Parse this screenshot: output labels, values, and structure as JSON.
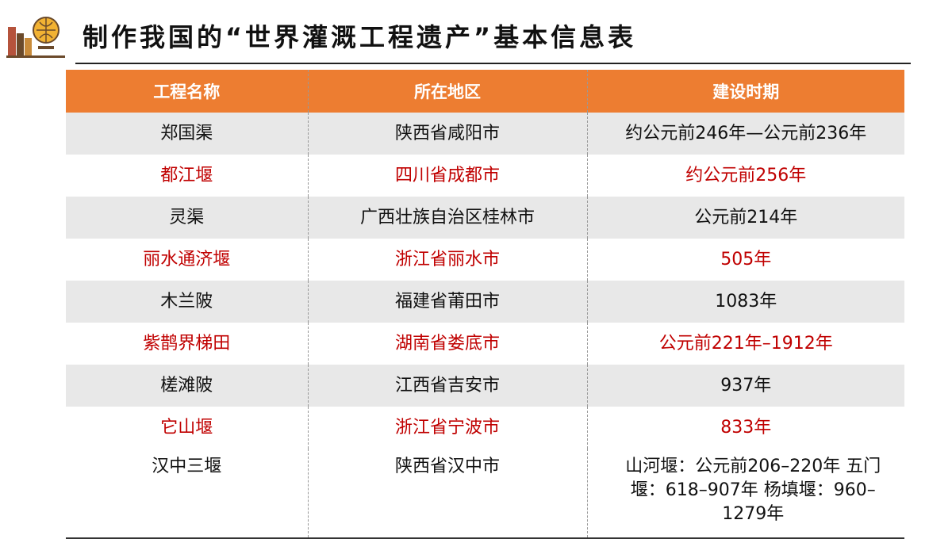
{
  "header": {
    "title": "制作我国的“世界灌溉工程遗产”基本信息表"
  },
  "table": {
    "columns": [
      "工程名称",
      "所在地区",
      "建设时期"
    ],
    "rows": [
      [
        "郑国渠",
        "陕西省咸阳市",
        "约公元前246年—公元前236年"
      ],
      [
        "都江堰",
        "四川省成都市",
        "约公元前256年"
      ],
      [
        "灵渠",
        "广西壮族自治区桂林市",
        "公元前214年"
      ],
      [
        "丽水通济堰",
        "浙江省丽水市",
        "505年"
      ],
      [
        "木兰陂",
        "福建省莆田市",
        "1083年"
      ],
      [
        "紫鹊界梯田",
        "湖南省娄底市",
        "公元前221年–1912年"
      ],
      [
        "槎滩陂",
        "江西省吉安市",
        "937年"
      ],
      [
        "它山堰",
        "浙江省宁波市",
        "833年"
      ],
      [
        "汉中三堰",
        "陕西省汉中市",
        "山河堰：公元前206–220年 五门堰：618–907年 杨填堰：960–1279年"
      ]
    ]
  }
}
